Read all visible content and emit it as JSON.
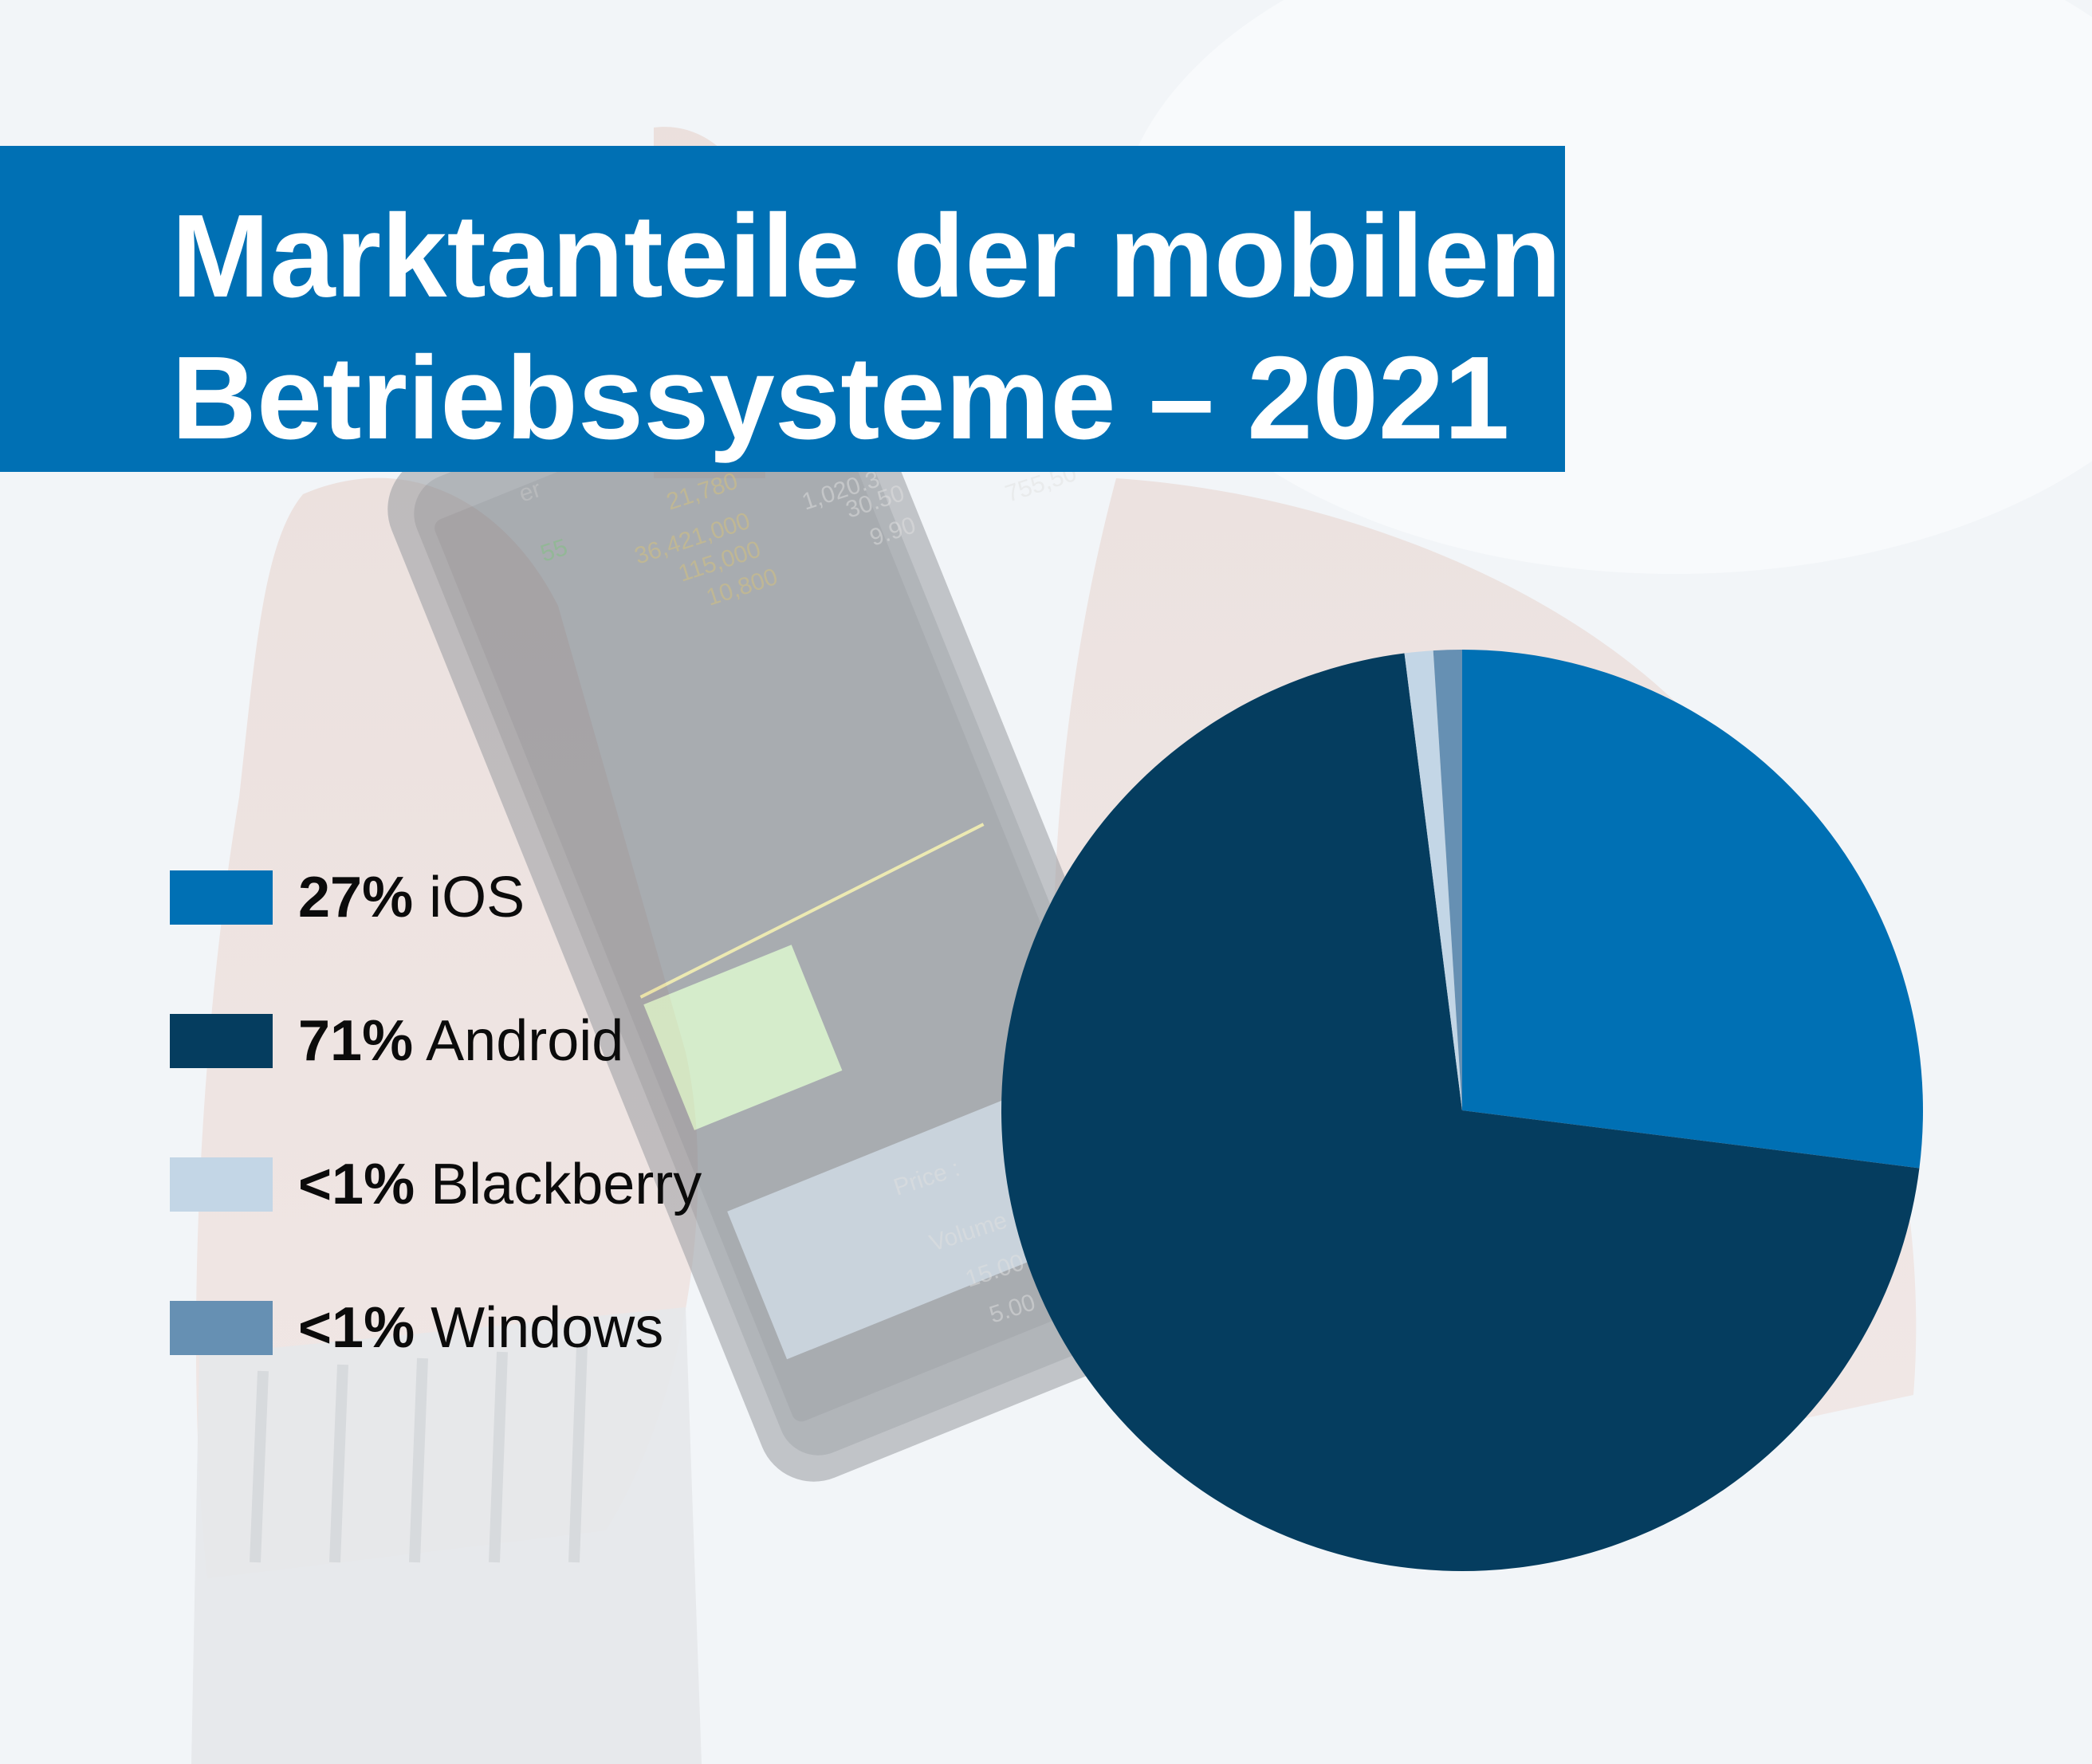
{
  "colors": {
    "ios": "#0070b4",
    "android": "#053d5f",
    "blackberry": "#c3d6e6",
    "windows": "#6690b3",
    "title_bg": "#0070b4"
  },
  "title": {
    "line1": "Marktanteile der mobilen",
    "line2": "Betriebssysteme – 2021"
  },
  "legend": [
    {
      "pct": "27%",
      "name": "iOS"
    },
    {
      "pct": "71%",
      "name": "Android"
    },
    {
      "pct": "<1%",
      "name": "Blackberry"
    },
    {
      "pct": "<1%",
      "name": "Windows"
    }
  ],
  "chart_data": {
    "type": "pie",
    "title": "Marktanteile der mobilen Betriebssysteme – 2021",
    "categories": [
      "iOS",
      "Android",
      "Blackberry",
      "Windows"
    ],
    "values": [
      27,
      71,
      1,
      1
    ],
    "value_labels": [
      "27%",
      "71%",
      "<1%",
      "<1%"
    ],
    "unit": "%",
    "legend_position": "left",
    "start_angle_deg": 0,
    "direction": "clockwise"
  },
  "background_photo": {
    "visible_text": [
      "er",
      "21,780",
      "1,020.3",
      "755,50",
      "55",
      "36,421,000",
      "30.50",
      "115,000",
      "9.90",
      "10,800",
      "Price :",
      "Volume",
      "15.00",
      "5.00"
    ]
  }
}
